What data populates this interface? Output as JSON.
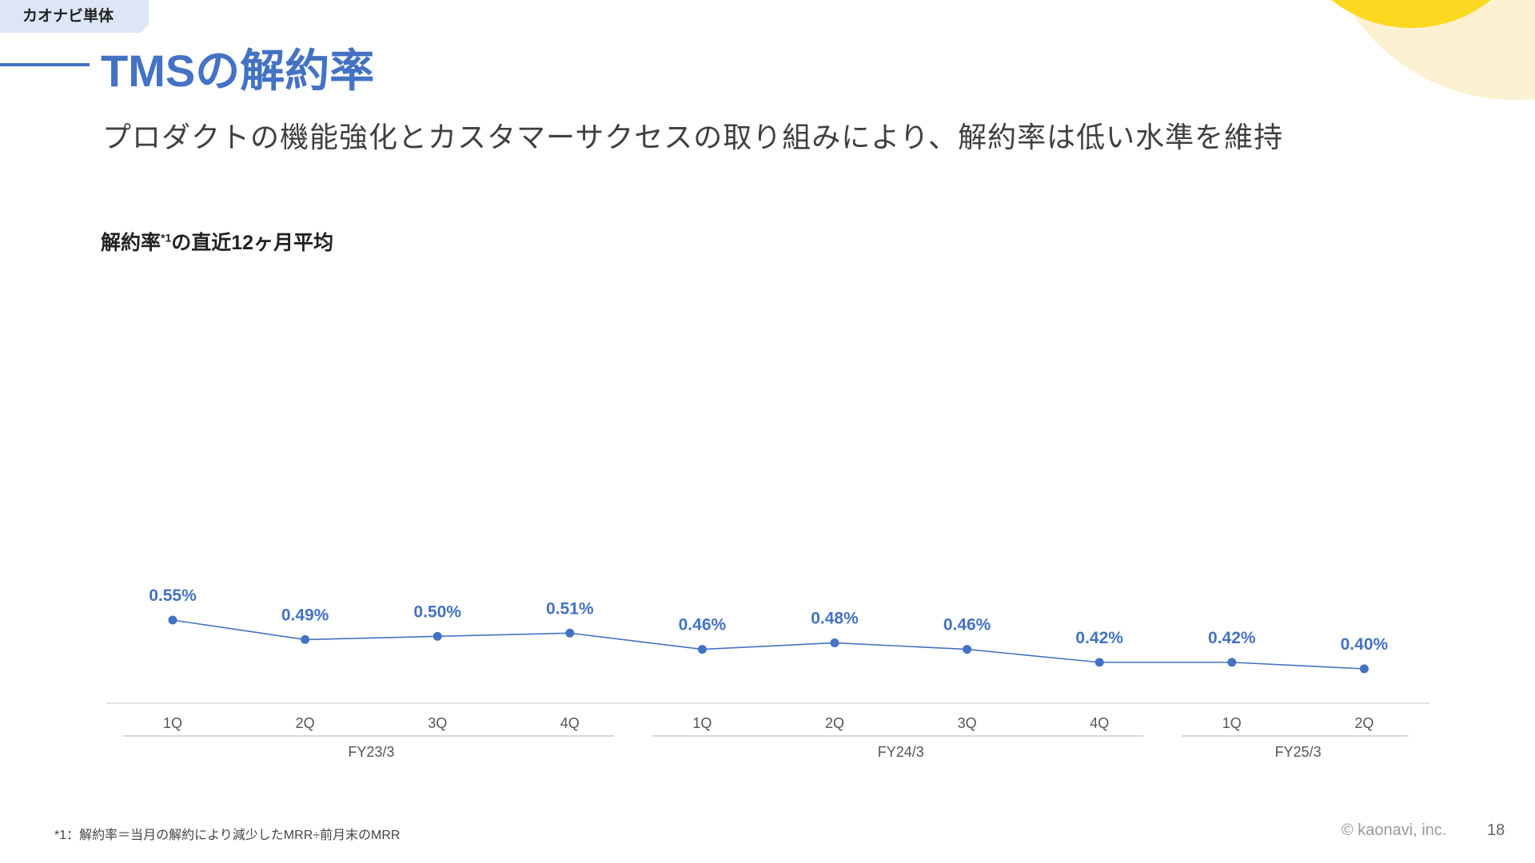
{
  "header": {
    "tag": "カオナビ単体",
    "title": "TMSの解約率",
    "subtitle": "プロダクトの機能強化とカスタマーサクセスの取り組みにより、解約率は低い水準を維持"
  },
  "chart_section": {
    "title_prefix": "解約率",
    "title_sup": "*1",
    "title_suffix": "の直近12ヶ月平均"
  },
  "chart_data": {
    "type": "line",
    "categories": [
      "1Q",
      "2Q",
      "3Q",
      "4Q",
      "1Q",
      "2Q",
      "3Q",
      "4Q",
      "1Q",
      "2Q"
    ],
    "groups": [
      {
        "label": "FY23/3",
        "start": 0,
        "end": 3
      },
      {
        "label": "FY24/3",
        "start": 4,
        "end": 7
      },
      {
        "label": "FY25/3",
        "start": 8,
        "end": 9
      }
    ],
    "series": [
      {
        "values": [
          0.55,
          0.49,
          0.5,
          0.51,
          0.46,
          0.48,
          0.46,
          0.42,
          0.42,
          0.4
        ],
        "labels": [
          "0.55%",
          "0.49%",
          "0.50%",
          "0.51%",
          "0.46%",
          "0.48%",
          "0.46%",
          "0.42%",
          "0.42%",
          "0.40%"
        ],
        "color": "#4472c4"
      }
    ],
    "grid": false,
    "legend": "none"
  },
  "footer": {
    "footnote": "*1：解約率＝当月の解約により減少したMRR÷前月末のMRR",
    "copyright": "© kaonavi, inc.",
    "page_number": "18"
  },
  "colors": {
    "accent": "#4472c4",
    "tag_bg": "#dde6f6",
    "deco_yellow": "#fcd820",
    "deco_cream": "#fbf1d0"
  }
}
